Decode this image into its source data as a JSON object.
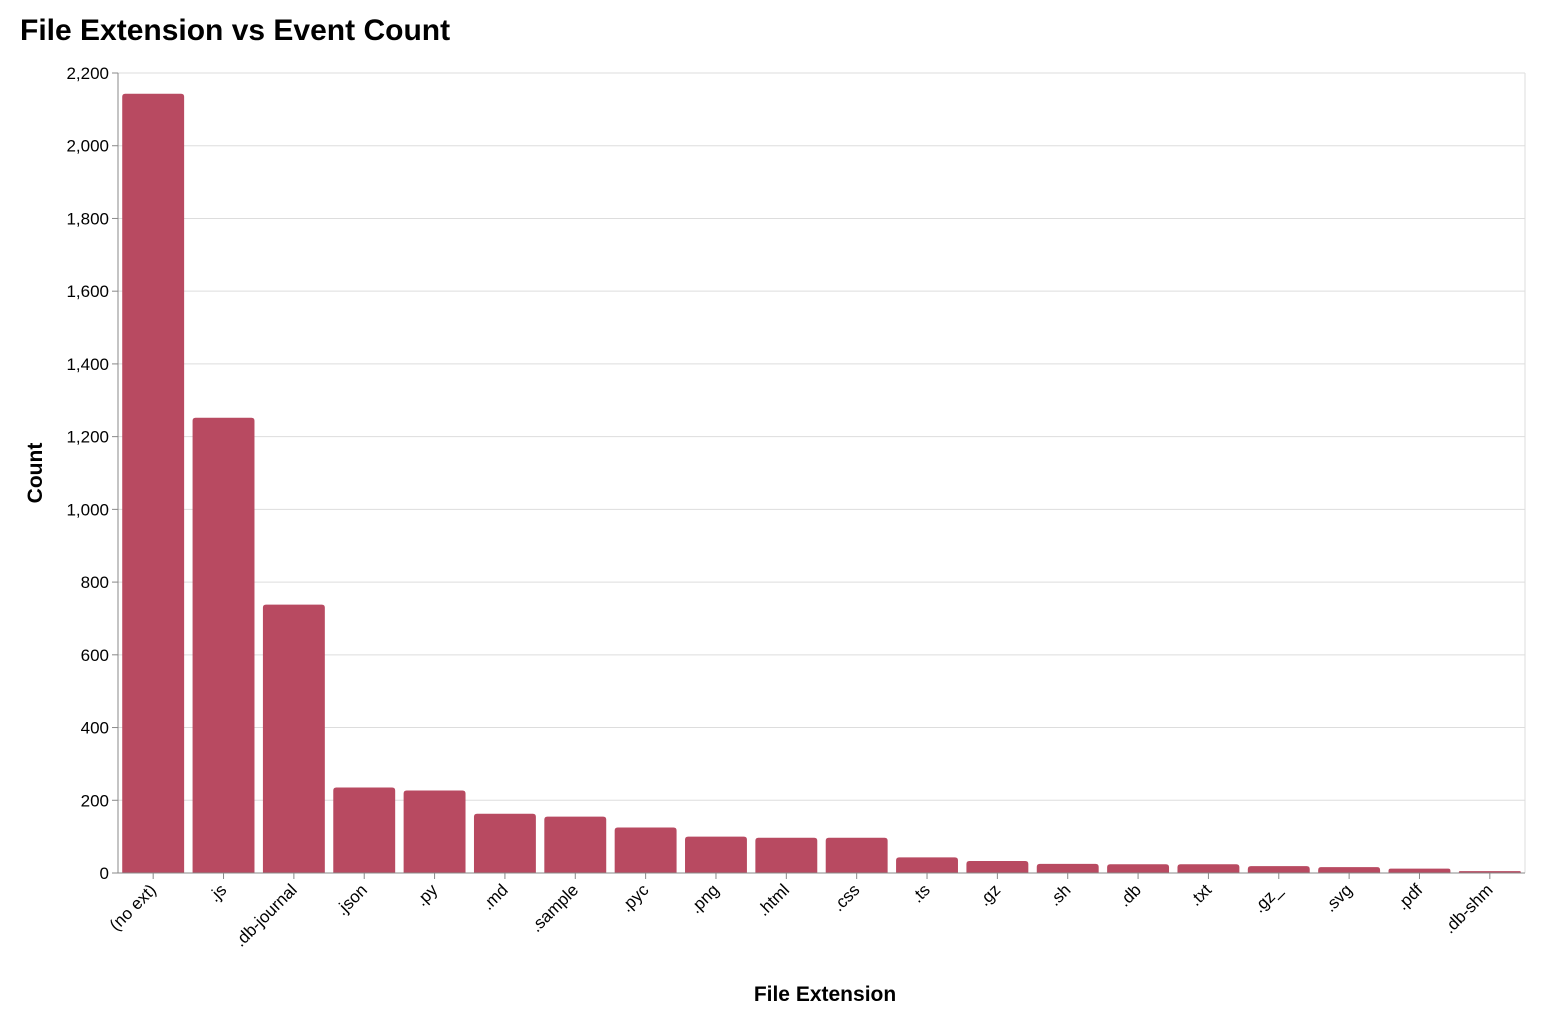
{
  "chart_data": {
    "type": "bar",
    "title": "File Extension vs Event Count",
    "xlabel": "File Extension",
    "ylabel": "Count",
    "ylim": [
      0,
      2200
    ],
    "yticks": [
      0,
      200,
      400,
      600,
      800,
      1000,
      1200,
      1400,
      1600,
      1800,
      2000,
      2200
    ],
    "ytick_labels": [
      "0",
      "200",
      "400",
      "600",
      "800",
      "1,000",
      "1,200",
      "1,400",
      "1,600",
      "1,800",
      "2,000",
      "2,200"
    ],
    "grid": true,
    "bar_color": "#b84a61",
    "categories": [
      "(no ext)",
      ".js",
      ".db-journal",
      ".json",
      ".py",
      ".md",
      ".sample",
      ".pyc",
      ".png",
      ".html",
      ".css",
      ".ts",
      ".gz",
      ".sh",
      ".db",
      ".txt",
      ".gz_",
      ".svg",
      ".pdf",
      ".db-shm"
    ],
    "values": [
      2143,
      1252,
      738,
      235,
      227,
      163,
      155,
      125,
      100,
      97,
      97,
      43,
      33,
      25,
      24,
      24,
      19,
      16,
      12,
      5
    ]
  }
}
